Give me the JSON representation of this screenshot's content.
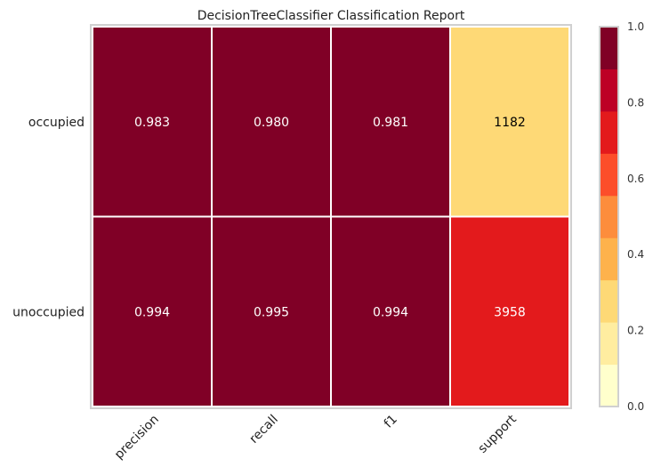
{
  "chart_data": {
    "type": "heatmap",
    "title": "DecisionTreeClassifier Classification Report",
    "rows": [
      "occupied",
      "unoccupied"
    ],
    "columns": [
      "precision",
      "recall",
      "f1",
      "support"
    ],
    "values": [
      [
        "0.983",
        "0.980",
        "0.981",
        "1182"
      ],
      [
        "0.994",
        "0.995",
        "0.994",
        "3958"
      ]
    ],
    "color_scale_values": [
      [
        0.983,
        0.98,
        0.981,
        0.23
      ],
      [
        0.994,
        0.995,
        0.994,
        0.77
      ]
    ],
    "colorbar": {
      "range": [
        0.0,
        1.0
      ],
      "ticks": [
        "0.0",
        "0.2",
        "0.4",
        "0.6",
        "0.8",
        "1.0"
      ],
      "colors": [
        "#ffffcc",
        "#ffeda0",
        "#fed976",
        "#feb24c",
        "#fd8d3c",
        "#fc4e2a",
        "#e31a1c",
        "#bd0026",
        "#800026"
      ]
    },
    "grid": false
  }
}
